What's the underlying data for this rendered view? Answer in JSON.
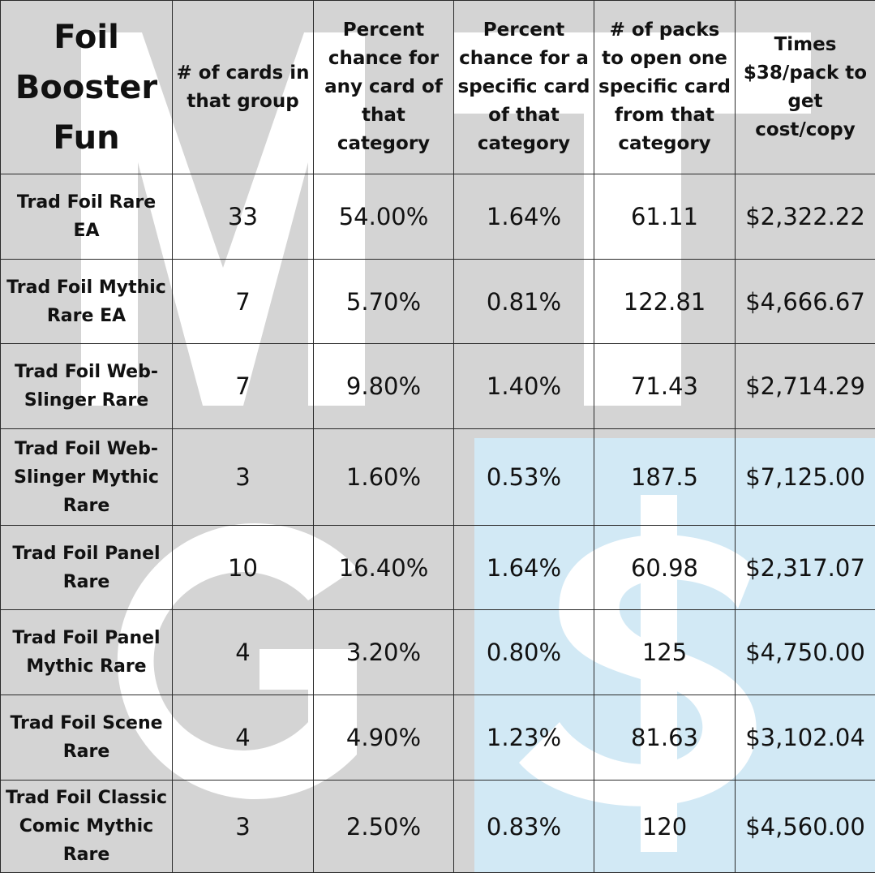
{
  "table": {
    "title": "Foil Booster Fun",
    "headers": [
      "# of cards in that group",
      "Percent chance for any card of that category",
      "Percent chance for a specific card of that category",
      "# of packs to open one specific card from that category",
      "Times $38/pack to get cost/copy"
    ],
    "rows": [
      {
        "label": "Trad Foil Rare EA",
        "cards": "33",
        "any": "54.00%",
        "specific": "1.64%",
        "packs": "61.11",
        "cost": "$2,322.22"
      },
      {
        "label": "Trad Foil Mythic Rare EA",
        "cards": "7",
        "any": "5.70%",
        "specific": "0.81%",
        "packs": "122.81",
        "cost": "$4,666.67"
      },
      {
        "label": "Trad Foil Web-Slinger Rare",
        "cards": "7",
        "any": "9.80%",
        "specific": "1.40%",
        "packs": "71.43",
        "cost": "$2,714.29"
      },
      {
        "label": "Trad Foil Web-Slinger Mythic Rare",
        "cards": "3",
        "any": "1.60%",
        "specific": "0.53%",
        "packs": "187.5",
        "cost": "$7,125.00"
      },
      {
        "label": "Trad Foil Panel Rare",
        "cards": "10",
        "any": "16.40%",
        "specific": "1.64%",
        "packs": "60.98",
        "cost": "$2,317.07"
      },
      {
        "label": "Trad Foil Panel Mythic Rare",
        "cards": "4",
        "any": "3.20%",
        "specific": "0.80%",
        "packs": "125",
        "cost": "$4,750.00"
      },
      {
        "label": "Trad Foil Scene Rare",
        "cards": "4",
        "any": "4.90%",
        "specific": "1.23%",
        "packs": "81.63",
        "cost": "$3,102.04"
      },
      {
        "label": "Trad Foil Classic Comic Mythic Rare",
        "cards": "3",
        "any": "2.50%",
        "specific": "0.83%",
        "packs": "120",
        "cost": "$4,560.00"
      }
    ]
  },
  "watermark": {
    "letters": [
      "M",
      "T",
      "G",
      "$"
    ],
    "colors": {
      "gray": "#d4d4d4",
      "white": "#ffffff",
      "blue": "#d2e9f5"
    }
  }
}
